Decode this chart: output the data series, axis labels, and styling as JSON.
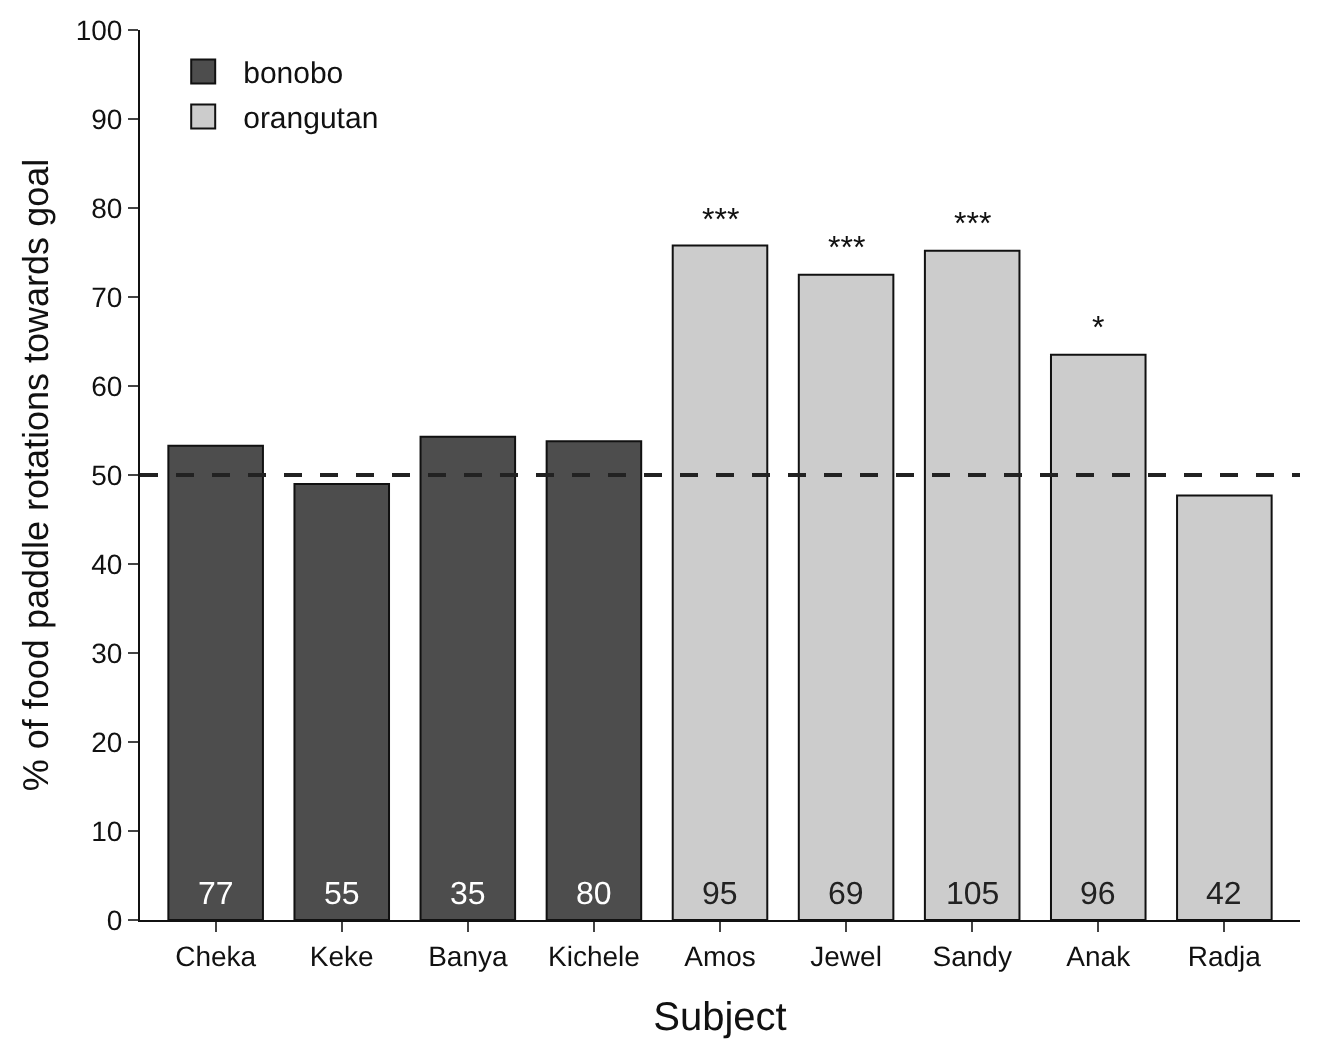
{
  "chart_data": {
    "type": "bar",
    "xlabel": "Subject",
    "ylabel": "% of food paddle rotations towards goal",
    "categories": [
      "Cheka",
      "Keke",
      "Banya",
      "Kichele",
      "Amos",
      "Jewel",
      "Sandy",
      "Anak",
      "Radja"
    ],
    "series": [
      {
        "name": "bonobo",
        "color": "#4d4d4d",
        "values": [
          53.3,
          49.0,
          54.3,
          53.8,
          null,
          null,
          null,
          null,
          null
        ]
      },
      {
        "name": "orangutan",
        "color": "#cccccc",
        "values": [
          null,
          null,
          null,
          null,
          75.8,
          72.5,
          75.2,
          63.5,
          47.7
        ]
      }
    ],
    "ylim": [
      0,
      100
    ],
    "yticks": [
      0,
      10,
      20,
      30,
      40,
      50,
      60,
      70,
      80,
      90,
      100
    ],
    "grid": false,
    "legend": "top left",
    "ref_lines": [
      {
        "axis": "y",
        "value": 50,
        "color": "#222222",
        "line_style": "dashed"
      }
    ],
    "annotations": [
      {
        "text": "***",
        "x": "Amos",
        "y": 75.8
      },
      {
        "text": "***",
        "x": "Jewel",
        "y": 72.5
      },
      {
        "text": "***",
        "x": "Sandy",
        "y": 75.2
      },
      {
        "text": "*",
        "x": "Anak",
        "y": 63.5
      },
      {
        "text": "77",
        "x": "Cheka",
        "y": 0
      },
      {
        "text": "55",
        "x": "Keke",
        "y": 0
      },
      {
        "text": "35",
        "x": "Banya",
        "y": 0
      },
      {
        "text": "80",
        "x": "Kichele",
        "y": 0
      },
      {
        "text": "95",
        "x": "Amos",
        "y": 0
      },
      {
        "text": "69",
        "x": "Jewel",
        "y": 0
      },
      {
        "text": "105",
        "x": "Sandy",
        "y": 0
      },
      {
        "text": "96",
        "x": "Anak",
        "y": 0
      },
      {
        "text": "42",
        "x": "Radja",
        "y": 0
      }
    ]
  }
}
